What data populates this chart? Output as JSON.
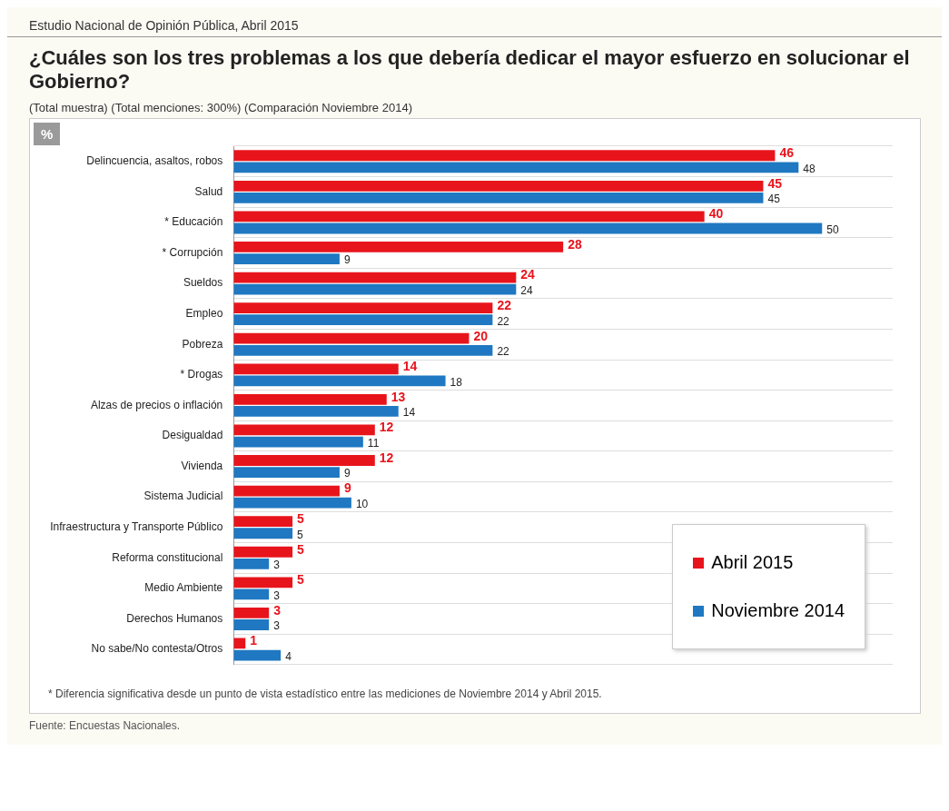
{
  "chart_data": {
    "type": "bar",
    "orientation": "horizontal",
    "subtitle": "Estudio Nacional de Opinión Pública, Abril 2015",
    "title": "¿Cuáles son los tres problemas a los que debería dedicar el mayor esfuerzo en solucionar el Gobierno?",
    "categories": [
      "Delincuencia, asaltos, robos",
      "Salud",
      "* Educación",
      "* Corrupción",
      "Sueldos",
      "Empleo",
      "Pobreza",
      "* Drogas",
      "Alzas de precios o inflación",
      "Desigualdad",
      "Vivienda",
      "Sistema Judicial",
      "Infraestructura y Transporte Público",
      "Reforma constitucional",
      "Medio Ambiente",
      "Derechos Humanos",
      "No sabe/No contesta/Otros"
    ],
    "series": [
      {
        "name": "Abril 2015",
        "color": "#e8141c",
        "values": [
          46,
          45,
          40,
          28,
          24,
          22,
          20,
          14,
          13,
          12,
          12,
          9,
          5,
          5,
          5,
          3,
          1
        ]
      },
      {
        "name": "Noviembre 2014",
        "color": "#1f78c1",
        "values": [
          48,
          45,
          50,
          9,
          24,
          22,
          22,
          18,
          14,
          11,
          9,
          10,
          5,
          3,
          3,
          3,
          4
        ]
      }
    ],
    "data_labels": true,
    "legend": "bottom right",
    "grid": "y",
    "annotations": [
      "(Total muestra) (Total menciones: 300%) (Comparación Noviembre 2014)",
      "%",
      "* Diferencia significativa desde un punto de vista estadístico entre las mediciones de Noviembre 2014 y Abril 2015.",
      "Fuente: Encuestas Nacionales."
    ]
  }
}
